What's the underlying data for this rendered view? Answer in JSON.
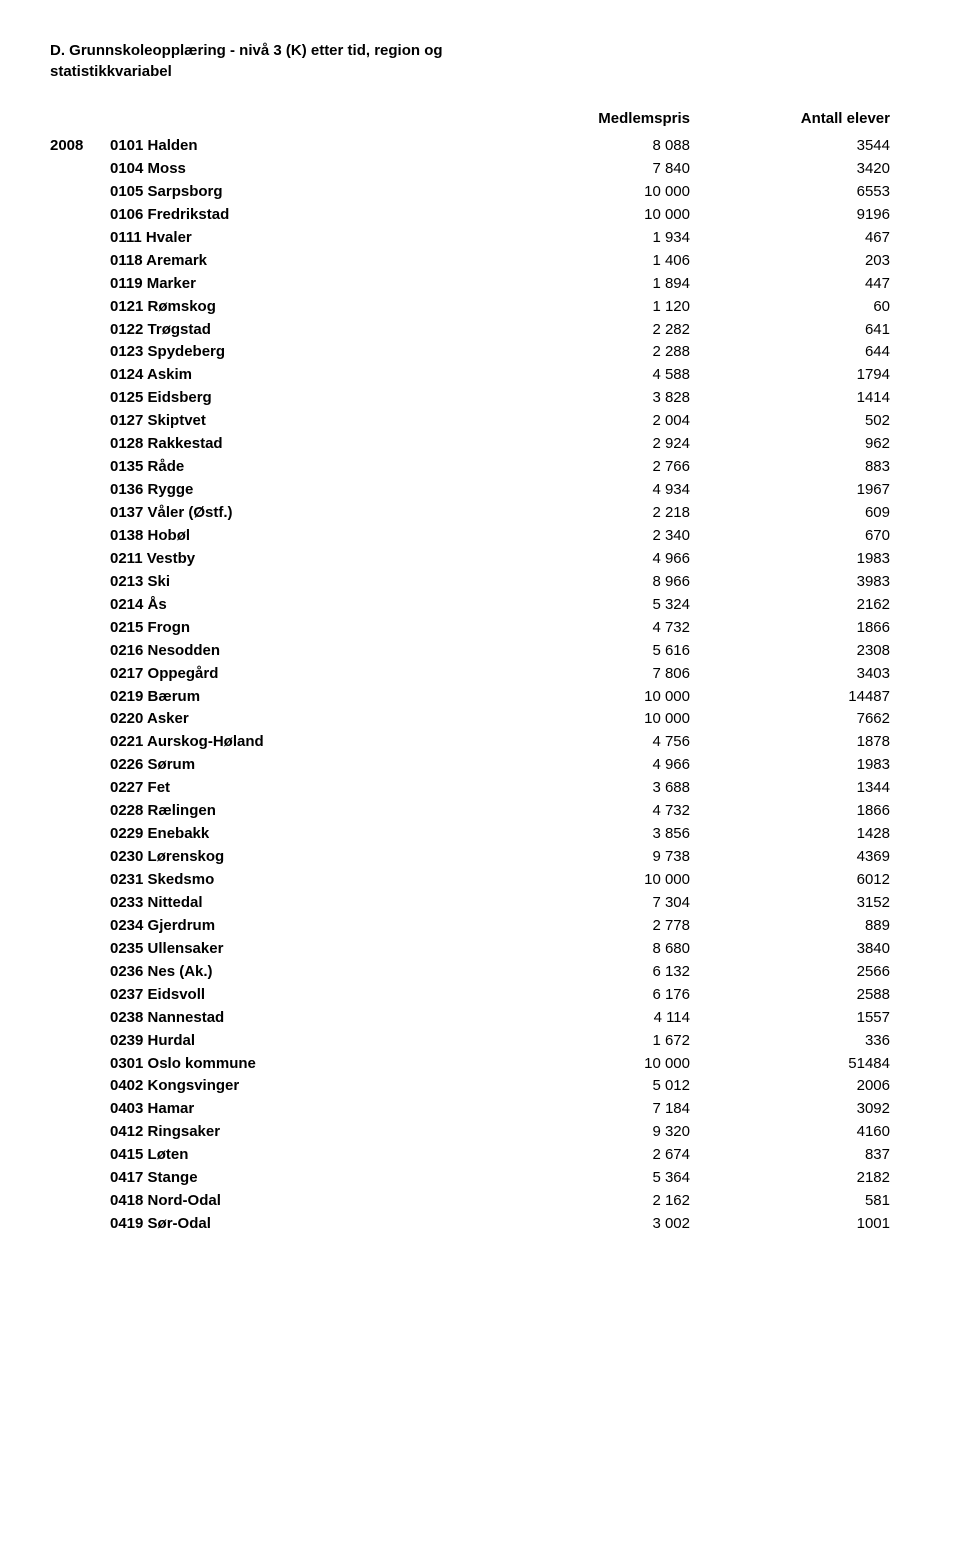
{
  "title_line1": "D. Grunnskoleopplæring - nivå 3 (K) etter tid, region og",
  "title_line2": "statistikkvariabel",
  "headers": {
    "col1": "Medlemspris",
    "col2": "Antall elever"
  },
  "year": "2008",
  "rows": [
    {
      "region": "0101 Halden",
      "v1": "8 088",
      "v2": "3544"
    },
    {
      "region": "0104 Moss",
      "v1": "7 840",
      "v2": "3420"
    },
    {
      "region": "0105 Sarpsborg",
      "v1": "10 000",
      "v2": "6553"
    },
    {
      "region": "0106 Fredrikstad",
      "v1": "10 000",
      "v2": "9196"
    },
    {
      "region": "0111 Hvaler",
      "v1": "1 934",
      "v2": "467"
    },
    {
      "region": "0118 Aremark",
      "v1": "1 406",
      "v2": "203"
    },
    {
      "region": "0119 Marker",
      "v1": "1 894",
      "v2": "447"
    },
    {
      "region": "0121 Rømskog",
      "v1": "1 120",
      "v2": "60"
    },
    {
      "region": "0122 Trøgstad",
      "v1": "2 282",
      "v2": "641"
    },
    {
      "region": "0123 Spydeberg",
      "v1": "2 288",
      "v2": "644"
    },
    {
      "region": "0124 Askim",
      "v1": "4 588",
      "v2": "1794"
    },
    {
      "region": "0125 Eidsberg",
      "v1": "3 828",
      "v2": "1414"
    },
    {
      "region": "0127 Skiptvet",
      "v1": "2 004",
      "v2": "502"
    },
    {
      "region": "0128 Rakkestad",
      "v1": "2 924",
      "v2": "962"
    },
    {
      "region": "0135 Råde",
      "v1": "2 766",
      "v2": "883"
    },
    {
      "region": "0136 Rygge",
      "v1": "4 934",
      "v2": "1967"
    },
    {
      "region": "0137 Våler (Østf.)",
      "v1": "2 218",
      "v2": "609"
    },
    {
      "region": "0138 Hobøl",
      "v1": "2 340",
      "v2": "670"
    },
    {
      "region": "0211 Vestby",
      "v1": "4 966",
      "v2": "1983"
    },
    {
      "region": "0213 Ski",
      "v1": "8 966",
      "v2": "3983"
    },
    {
      "region": "0214 Ås",
      "v1": "5 324",
      "v2": "2162"
    },
    {
      "region": "0215 Frogn",
      "v1": "4 732",
      "v2": "1866"
    },
    {
      "region": "0216 Nesodden",
      "v1": "5 616",
      "v2": "2308"
    },
    {
      "region": "0217 Oppegård",
      "v1": "7 806",
      "v2": "3403"
    },
    {
      "region": "0219 Bærum",
      "v1": "10 000",
      "v2": "14487"
    },
    {
      "region": "0220 Asker",
      "v1": "10 000",
      "v2": "7662"
    },
    {
      "region": "0221 Aurskog-Høland",
      "v1": "4 756",
      "v2": "1878"
    },
    {
      "region": "0226 Sørum",
      "v1": "4 966",
      "v2": "1983"
    },
    {
      "region": "0227 Fet",
      "v1": "3 688",
      "v2": "1344"
    },
    {
      "region": "0228 Rælingen",
      "v1": "4 732",
      "v2": "1866"
    },
    {
      "region": "0229 Enebakk",
      "v1": "3 856",
      "v2": "1428"
    },
    {
      "region": "0230 Lørenskog",
      "v1": "9 738",
      "v2": "4369"
    },
    {
      "region": "0231 Skedsmo",
      "v1": "10 000",
      "v2": "6012"
    },
    {
      "region": "0233 Nittedal",
      "v1": "7 304",
      "v2": "3152"
    },
    {
      "region": "0234 Gjerdrum",
      "v1": "2 778",
      "v2": "889"
    },
    {
      "region": "0235 Ullensaker",
      "v1": "8 680",
      "v2": "3840"
    },
    {
      "region": "0236 Nes (Ak.)",
      "v1": "6 132",
      "v2": "2566"
    },
    {
      "region": "0237 Eidsvoll",
      "v1": "6 176",
      "v2": "2588"
    },
    {
      "region": "0238 Nannestad",
      "v1": "4 114",
      "v2": "1557"
    },
    {
      "region": "0239 Hurdal",
      "v1": "1 672",
      "v2": "336"
    },
    {
      "region": "0301 Oslo kommune",
      "v1": "10 000",
      "v2": "51484"
    },
    {
      "region": "0402 Kongsvinger",
      "v1": "5 012",
      "v2": "2006"
    },
    {
      "region": "0403 Hamar",
      "v1": "7 184",
      "v2": "3092"
    },
    {
      "region": "0412 Ringsaker",
      "v1": "9 320",
      "v2": "4160"
    },
    {
      "region": "0415 Løten",
      "v1": "2 674",
      "v2": "837"
    },
    {
      "region": "0417 Stange",
      "v1": "5 364",
      "v2": "2182"
    },
    {
      "region": "0418 Nord-Odal",
      "v1": "2 162",
      "v2": "581"
    },
    {
      "region": "0419 Sør-Odal",
      "v1": "3 002",
      "v2": "1001"
    }
  ]
}
